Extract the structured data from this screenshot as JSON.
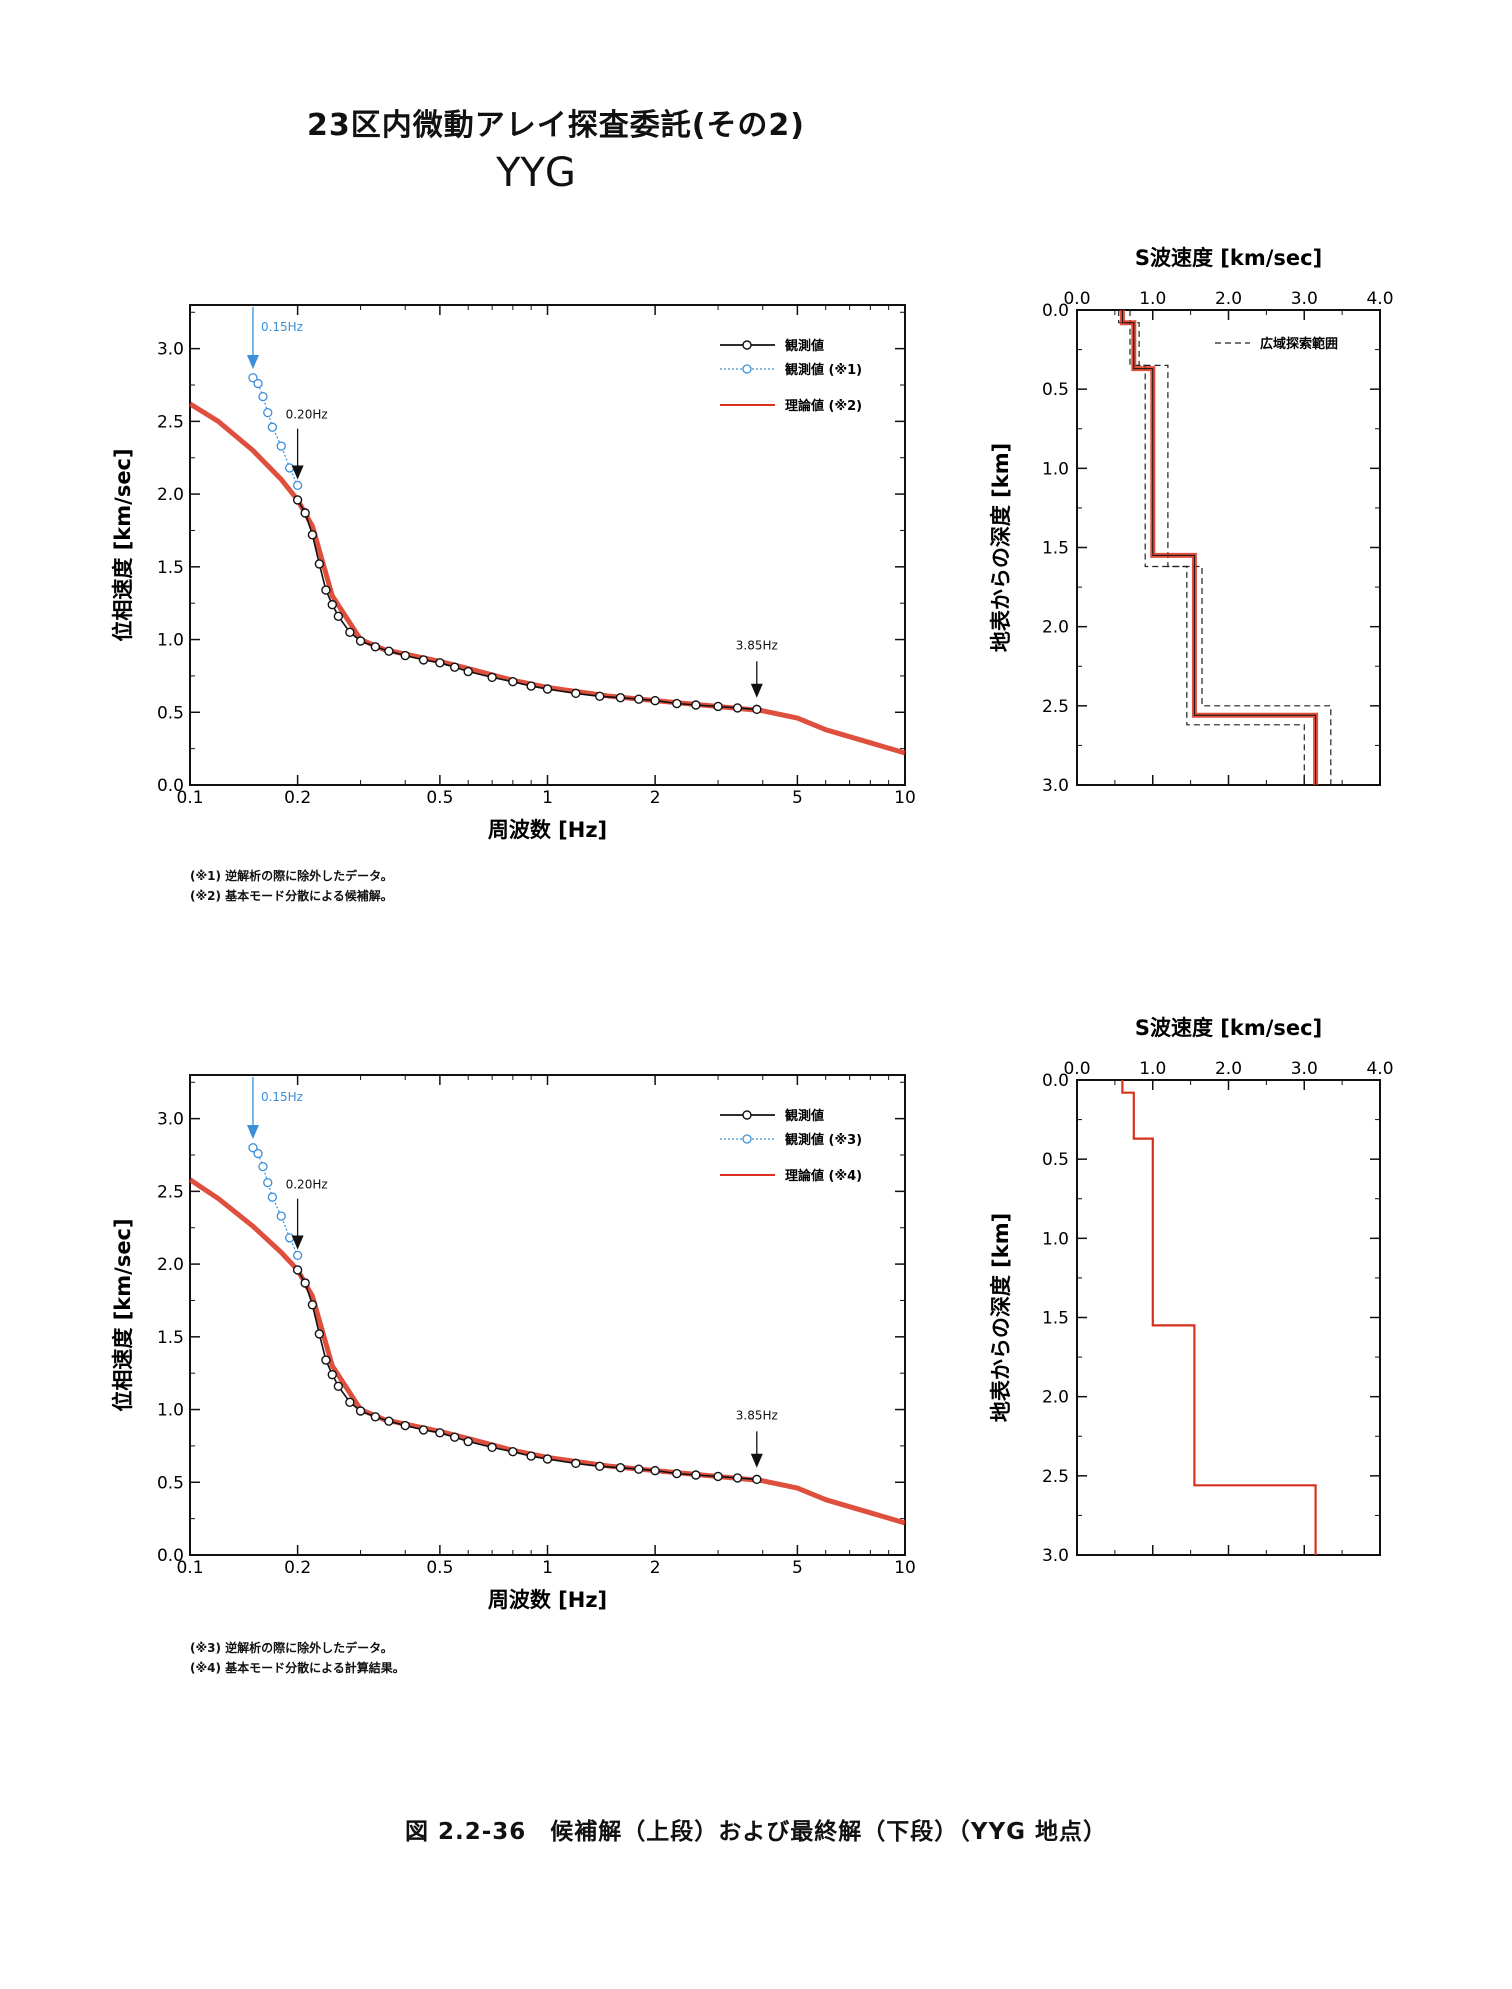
{
  "header": {
    "title": "23区内微動アレイ探査委託(その2)",
    "site": "YYG"
  },
  "caption": "図 2.2-36　候補解（上段）および最終解（下段）（YYG 地点）",
  "colors": {
    "observed": "#111111",
    "excluded": "#3a8fd8",
    "theory": "#d8301c",
    "range": "#222222"
  },
  "chart_data": [
    {
      "type": "line",
      "id": "dispersion-top",
      "xscale": "log",
      "xlim": [
        0.1,
        10
      ],
      "ylim": [
        0,
        3.3
      ],
      "xlabel": "周波数 [Hz]",
      "ylabel": "位相速度 [km/sec]",
      "xticks": [
        "0.1",
        "0.2",
        "0.5",
        "1",
        "2",
        "5",
        "10"
      ],
      "yticks": [
        "0.0",
        "0.5",
        "1.0",
        "1.5",
        "2.0",
        "2.5",
        "3.0"
      ],
      "annotations": [
        {
          "text": "0.15Hz",
          "x": 0.15,
          "kind": "excluded"
        },
        {
          "text": "0.20Hz",
          "x": 0.2,
          "kind": "observed"
        },
        {
          "text": "3.85Hz",
          "x": 3.85,
          "kind": "observed"
        }
      ],
      "legend": [
        "観測値",
        "観測値 (※1)",
        "理論値 (※2)"
      ],
      "series": [
        {
          "name": "観測値",
          "x": [
            0.2,
            0.21,
            0.22,
            0.23,
            0.24,
            0.25,
            0.26,
            0.28,
            0.3,
            0.33,
            0.36,
            0.4,
            0.45,
            0.5,
            0.55,
            0.6,
            0.7,
            0.8,
            0.9,
            1.0,
            1.2,
            1.4,
            1.6,
            1.8,
            2.0,
            2.3,
            2.6,
            3.0,
            3.4,
            3.85
          ],
          "y": [
            1.96,
            1.87,
            1.72,
            1.52,
            1.34,
            1.24,
            1.16,
            1.05,
            0.99,
            0.95,
            0.92,
            0.89,
            0.86,
            0.84,
            0.81,
            0.78,
            0.74,
            0.71,
            0.68,
            0.66,
            0.63,
            0.61,
            0.6,
            0.59,
            0.58,
            0.56,
            0.55,
            0.54,
            0.53,
            0.52
          ]
        },
        {
          "name": "観測値 (※1)",
          "x": [
            0.15,
            0.155,
            0.16,
            0.165,
            0.17,
            0.18,
            0.19,
            0.2
          ],
          "y": [
            2.8,
            2.76,
            2.67,
            2.56,
            2.46,
            2.33,
            2.18,
            2.06
          ]
        },
        {
          "name": "理論値 (※2)",
          "x": [
            0.1,
            0.12,
            0.15,
            0.18,
            0.2,
            0.22,
            0.25,
            0.3,
            0.35,
            0.4,
            0.5,
            0.6,
            0.8,
            1.0,
            1.5,
            2.0,
            3.0,
            4.0,
            5.0,
            6.0,
            8.0,
            10.0
          ],
          "y": [
            2.62,
            2.5,
            2.3,
            2.1,
            1.96,
            1.78,
            1.3,
            1.0,
            0.93,
            0.9,
            0.85,
            0.8,
            0.72,
            0.67,
            0.61,
            0.58,
            0.54,
            0.51,
            0.46,
            0.38,
            0.29,
            0.22
          ]
        }
      ]
    },
    {
      "type": "line",
      "id": "vs-profile-top",
      "title": "S波速度 [km/sec]",
      "ylabel": "地表からの深度 [km]",
      "xlim": [
        0,
        4
      ],
      "ylim": [
        0,
        3
      ],
      "xticks": [
        "0.0",
        "1.0",
        "2.0",
        "3.0",
        "4.0"
      ],
      "yticks": [
        "0.0",
        "0.5",
        "1.0",
        "1.5",
        "2.0",
        "2.5",
        "3.0"
      ],
      "legend": [
        "広域探索範囲"
      ],
      "series": [
        {
          "name": "candidate",
          "vs": [
            0.6,
            0.75,
            1.0,
            1.55,
            3.15
          ],
          "depth_bottom": [
            0.08,
            0.37,
            1.55,
            2.56,
            3.0
          ]
        },
        {
          "name": "広域探索範囲-min",
          "vs": [
            0.55,
            0.7,
            0.9,
            1.45,
            3.0
          ],
          "depth_bottom": [
            0.08,
            0.35,
            1.62,
            2.62,
            3.0
          ]
        },
        {
          "name": "広域探索範囲-max",
          "vs": [
            0.7,
            0.82,
            1.2,
            1.65,
            3.35
          ],
          "depth_bottom": [
            0.08,
            0.35,
            1.62,
            2.5,
            3.0
          ]
        }
      ]
    },
    {
      "type": "line",
      "id": "dispersion-bottom",
      "xscale": "log",
      "xlim": [
        0.1,
        10
      ],
      "ylim": [
        0,
        3.3
      ],
      "xlabel": "周波数 [Hz]",
      "ylabel": "位相速度 [km/sec]",
      "xticks": [
        "0.1",
        "0.2",
        "0.5",
        "1",
        "2",
        "5",
        "10"
      ],
      "yticks": [
        "0.0",
        "0.5",
        "1.0",
        "1.5",
        "2.0",
        "2.5",
        "3.0"
      ],
      "annotations": [
        {
          "text": "0.15Hz",
          "x": 0.15,
          "kind": "excluded"
        },
        {
          "text": "0.20Hz",
          "x": 0.2,
          "kind": "observed"
        },
        {
          "text": "3.85Hz",
          "x": 3.85,
          "kind": "observed"
        }
      ],
      "legend": [
        "観測値",
        "観測値 (※3)",
        "理論値 (※4)"
      ],
      "series": [
        {
          "name": "観測値",
          "x": [
            0.2,
            0.21,
            0.22,
            0.23,
            0.24,
            0.25,
            0.26,
            0.28,
            0.3,
            0.33,
            0.36,
            0.4,
            0.45,
            0.5,
            0.55,
            0.6,
            0.7,
            0.8,
            0.9,
            1.0,
            1.2,
            1.4,
            1.6,
            1.8,
            2.0,
            2.3,
            2.6,
            3.0,
            3.4,
            3.85
          ],
          "y": [
            1.96,
            1.87,
            1.72,
            1.52,
            1.34,
            1.24,
            1.16,
            1.05,
            0.99,
            0.95,
            0.92,
            0.89,
            0.86,
            0.84,
            0.81,
            0.78,
            0.74,
            0.71,
            0.68,
            0.66,
            0.63,
            0.61,
            0.6,
            0.59,
            0.58,
            0.56,
            0.55,
            0.54,
            0.53,
            0.52
          ]
        },
        {
          "name": "観測値 (※3)",
          "x": [
            0.15,
            0.155,
            0.16,
            0.165,
            0.17,
            0.18,
            0.19,
            0.2
          ],
          "y": [
            2.8,
            2.76,
            2.67,
            2.56,
            2.46,
            2.33,
            2.18,
            2.06
          ]
        },
        {
          "name": "理論値 (※4)",
          "x": [
            0.1,
            0.12,
            0.15,
            0.18,
            0.2,
            0.22,
            0.25,
            0.3,
            0.35,
            0.4,
            0.5,
            0.6,
            0.8,
            1.0,
            1.5,
            2.0,
            3.0,
            4.0,
            5.0,
            6.0,
            8.0,
            10.0
          ],
          "y": [
            2.58,
            2.45,
            2.26,
            2.08,
            1.96,
            1.78,
            1.3,
            1.0,
            0.93,
            0.9,
            0.85,
            0.8,
            0.72,
            0.67,
            0.61,
            0.58,
            0.54,
            0.51,
            0.46,
            0.38,
            0.29,
            0.22
          ]
        }
      ]
    },
    {
      "type": "line",
      "id": "vs-profile-bottom",
      "title": "S波速度 [km/sec]",
      "ylabel": "地表からの深度 [km]",
      "xlim": [
        0,
        4
      ],
      "ylim": [
        0,
        3
      ],
      "xticks": [
        "0.0",
        "1.0",
        "2.0",
        "3.0",
        "4.0"
      ],
      "yticks": [
        "0.0",
        "0.5",
        "1.0",
        "1.5",
        "2.0",
        "2.5",
        "3.0"
      ],
      "series": [
        {
          "name": "final",
          "vs": [
            0.6,
            0.75,
            1.0,
            1.55,
            3.15
          ],
          "depth_bottom": [
            0.08,
            0.37,
            1.55,
            2.56,
            3.0
          ]
        }
      ]
    }
  ],
  "notes_top": [
    "(※1) 逆解析の際に除外したデータ。",
    "(※2) 基本モード分散による候補解。"
  ],
  "notes_bottom": [
    "(※3) 逆解析の際に除外したデータ。",
    "(※4) 基本モード分散による計算結果。"
  ]
}
